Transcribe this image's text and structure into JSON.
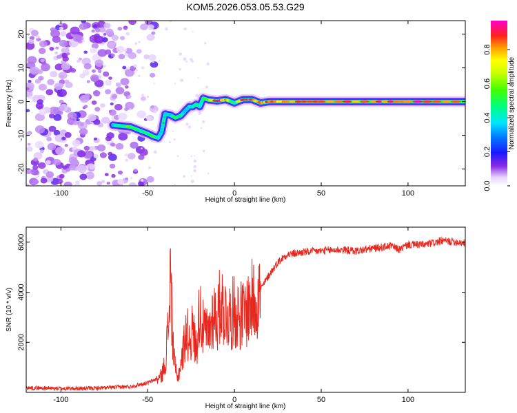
{
  "title": "KOM5.2026.053.05.53.G29",
  "colors": {
    "snr_line": "#e8281e",
    "spectrogram_low": "#7b3fe0",
    "frame": "#000000"
  },
  "chart_data": [
    {
      "type": "heatmap",
      "name": "spectrogram",
      "xlabel": "Height of straight line (km)",
      "ylabel": "Frequency (Hz)",
      "xlim": [
        -120,
        133
      ],
      "ylim": [
        -25,
        24
      ],
      "xticks": [
        -100,
        -50,
        0,
        50,
        100
      ],
      "yticks": [
        -20,
        -10,
        0,
        10,
        20
      ],
      "colorbar": {
        "label": "Normalized spectral amplitude",
        "range": [
          0,
          0.97
        ],
        "ticks": [
          0.0,
          0.2,
          0.4,
          0.6,
          0.8
        ],
        "tick_labels": [
          "0.0",
          "0.2",
          "0.4",
          "0.6",
          "0.8"
        ]
      },
      "noise_region_x": [
        -120,
        -60
      ],
      "ridge": {
        "x": [
          -70,
          -60,
          -55,
          -50,
          -47,
          -44,
          -42,
          -40,
          -37,
          -34,
          -31,
          -28,
          -26,
          -24,
          -22,
          -20,
          -18,
          -15,
          -10,
          -5,
          0,
          5,
          10,
          15,
          20,
          30,
          50,
          80,
          100,
          133
        ],
        "freq": [
          -7,
          -7.5,
          -8.5,
          -9.5,
          -10.3,
          -10.8,
          -9,
          -3.7,
          -4,
          -4.8,
          -4.2,
          -2.5,
          -1.5,
          -1.5,
          -0.8,
          -1.5,
          1,
          0.5,
          0.2,
          0.6,
          -0.4,
          0.6,
          0.6,
          -0.4,
          0,
          0,
          0,
          0,
          0,
          0
        ],
        "amplitude": [
          0.4,
          0.55,
          0.45,
          0.5,
          0.6,
          0.45,
          0.3,
          0.35,
          0.4,
          0.55,
          0.4,
          0.3,
          0.35,
          0.4,
          0.45,
          0.4,
          0.5,
          0.6,
          0.95,
          0.8,
          0.45,
          0.95,
          0.9,
          0.8,
          0.85,
          0.85,
          0.85,
          0.85,
          0.9,
          0.9
        ]
      }
    },
    {
      "type": "line",
      "name": "snr",
      "xlabel": "Height of straight line (km)",
      "ylabel": "SNR (10 * v/v)",
      "xlim": [
        -120,
        133
      ],
      "ylim": [
        0,
        6600
      ],
      "xticks": [
        -100,
        -50,
        0,
        50,
        100
      ],
      "yticks": [
        2000,
        4000,
        6000
      ],
      "series": [
        {
          "name": "SNR",
          "color": "#e8281e",
          "x": [
            -120,
            -100,
            -80,
            -60,
            -50,
            -45,
            -42,
            -40,
            -38,
            -37,
            -36,
            -35,
            -33,
            -30,
            -28,
            -26,
            -24,
            -22,
            -20,
            -18,
            -15,
            -12,
            -10,
            -8,
            -5,
            -2,
            0,
            5,
            10,
            15,
            20,
            25,
            30,
            40,
            50,
            60,
            70,
            80,
            90,
            95,
            100,
            110,
            120,
            130,
            133
          ],
          "y": [
            150,
            120,
            130,
            200,
            350,
            500,
            700,
            1200,
            2800,
            5000,
            3200,
            1500,
            500,
            1500,
            2600,
            2200,
            2600,
            1800,
            3600,
            2600,
            2400,
            3400,
            3000,
            3800,
            3300,
            3200,
            3400,
            3200,
            3800,
            4100,
            4700,
            5200,
            5500,
            5600,
            5650,
            5700,
            5650,
            5750,
            5850,
            5700,
            5900,
            5900,
            6050,
            6000,
            5950
          ]
        }
      ]
    }
  ]
}
